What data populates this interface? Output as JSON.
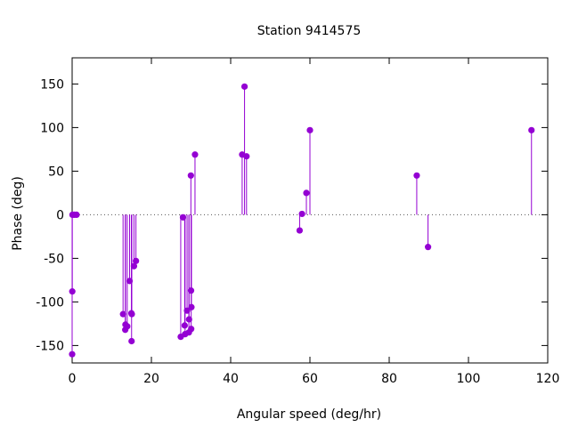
{
  "chart_data": {
    "type": "scatter",
    "style": "impulses-with-points",
    "title": "Station 9414575",
    "xlabel": "Angular speed (deg/hr)",
    "ylabel": "Phase (deg)",
    "xlim": [
      0,
      120
    ],
    "ylim": [
      -170,
      180
    ],
    "xticks": [
      0,
      20,
      40,
      60,
      80,
      100,
      120
    ],
    "yticks": [
      -150,
      -100,
      -50,
      0,
      50,
      100,
      150
    ],
    "xtick_labels": [
      "0",
      "20",
      "40",
      "60",
      "80",
      "100",
      "120"
    ],
    "ytick_labels": [
      "-150",
      "-100",
      "-50",
      "0",
      "50",
      "100",
      "150"
    ],
    "zero_line": true,
    "grid": false,
    "color": "#9400d3",
    "points": [
      {
        "x": 0.0,
        "y": -160
      },
      {
        "x": 0.04,
        "y": -88
      },
      {
        "x": 0.08,
        "y": 0
      },
      {
        "x": 0.55,
        "y": 0
      },
      {
        "x": 1.1,
        "y": 0
      },
      {
        "x": 12.85,
        "y": -114
      },
      {
        "x": 13.4,
        "y": -132
      },
      {
        "x": 13.45,
        "y": -126
      },
      {
        "x": 13.9,
        "y": -128
      },
      {
        "x": 14.5,
        "y": -76
      },
      {
        "x": 14.95,
        "y": -113
      },
      {
        "x": 15.0,
        "y": -145
      },
      {
        "x": 15.05,
        "y": -114
      },
      {
        "x": 15.6,
        "y": -59
      },
      {
        "x": 16.1,
        "y": -53
      },
      {
        "x": 27.4,
        "y": -140
      },
      {
        "x": 27.97,
        "y": -3
      },
      {
        "x": 28.4,
        "y": -127
      },
      {
        "x": 28.5,
        "y": -137
      },
      {
        "x": 29.0,
        "y": -110
      },
      {
        "x": 29.5,
        "y": -120
      },
      {
        "x": 29.46,
        "y": -135
      },
      {
        "x": 29.96,
        "y": 45
      },
      {
        "x": 30.0,
        "y": -87
      },
      {
        "x": 30.04,
        "y": -131
      },
      {
        "x": 30.1,
        "y": -106
      },
      {
        "x": 31.0,
        "y": 69
      },
      {
        "x": 42.9,
        "y": 69
      },
      {
        "x": 43.5,
        "y": 147
      },
      {
        "x": 44.0,
        "y": 67
      },
      {
        "x": 57.4,
        "y": -18
      },
      {
        "x": 58.0,
        "y": 1
      },
      {
        "x": 59.1,
        "y": 25
      },
      {
        "x": 60.0,
        "y": 97
      },
      {
        "x": 86.95,
        "y": 45
      },
      {
        "x": 89.8,
        "y": -37
      },
      {
        "x": 115.9,
        "y": 97
      }
    ]
  }
}
